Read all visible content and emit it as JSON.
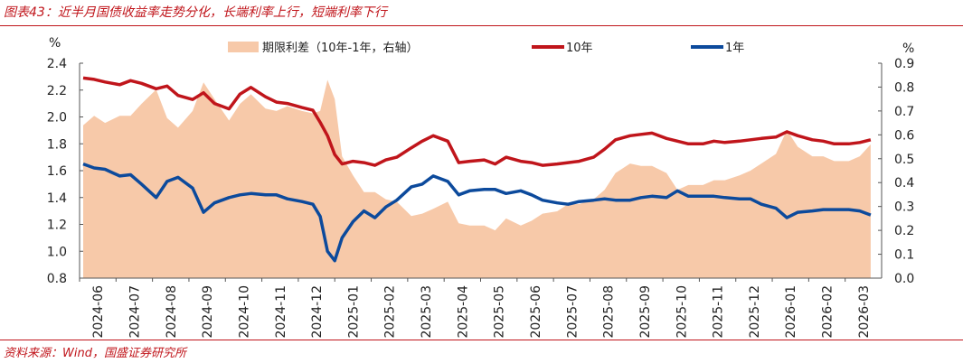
{
  "header": {
    "title": "图表43：近半月国债收益率走势分化，长端利率上行，短端利率下行"
  },
  "footer": {
    "source": "资料来源：Wind，国盛证券研究所"
  },
  "colors": {
    "spread": "#f7c9a9",
    "y10": "#c0151b",
    "y1": "#0c4a9c",
    "accent": "#c0151b"
  },
  "chart_data": {
    "type": "line",
    "left_unit": "%",
    "right_unit": "%",
    "left_axis": {
      "min": 0.8,
      "max": 2.4,
      "ticks": [
        "2.4",
        "2.2",
        "2.0",
        "1.8",
        "1.6",
        "1.4",
        "1.2",
        "1.0",
        "0.8"
      ]
    },
    "right_axis": {
      "min": 0.0,
      "max": 0.9,
      "ticks": [
        "0.9",
        "0.8",
        "0.7",
        "0.6",
        "0.5",
        "0.4",
        "0.3",
        "0.2",
        "0.1",
        "0.0"
      ]
    },
    "x_ticks": [
      "2024-06",
      "2024-07",
      "2024-08",
      "2024-09",
      "2024-10",
      "2024-11",
      "2024-12",
      "2025-01",
      "2025-02",
      "2025-03",
      "2025-04",
      "2025-05",
      "2025-06",
      "2025-07",
      "2025-08",
      "2025-09",
      "2025-10",
      "2025-11",
      "2025-12",
      "2026-01",
      "2026-02",
      "2026-03"
    ],
    "legend": [
      {
        "name": "期限利差（10年-1年，右轴）",
        "key": "spread"
      },
      {
        "name": "10年",
        "key": "y10"
      },
      {
        "name": "1年",
        "key": "y1"
      }
    ],
    "series": [
      {
        "name": "10年",
        "axis": "left",
        "x": [
          0,
          0.3,
          0.6,
          1,
          1.3,
          1.6,
          2,
          2.3,
          2.6,
          3,
          3.3,
          3.6,
          4,
          4.3,
          4.6,
          5,
          5.3,
          5.6,
          6,
          6.3,
          6.5,
          6.7,
          6.9,
          7.1,
          7.4,
          7.7,
          8,
          8.3,
          8.6,
          9,
          9.3,
          9.6,
          10,
          10.3,
          10.6,
          11,
          11.3,
          11.6,
          12,
          12.3,
          12.6,
          13,
          13.3,
          13.6,
          14,
          14.3,
          14.6,
          15,
          15.3,
          15.6,
          16,
          16.3,
          16.6,
          17,
          17.3,
          17.6,
          18,
          18.3,
          18.6,
          19,
          19.3,
          19.6,
          20,
          20.3,
          20.6,
          21,
          21.3,
          21.6
        ],
        "values": [
          2.29,
          2.28,
          2.26,
          2.24,
          2.27,
          2.25,
          2.21,
          2.23,
          2.16,
          2.13,
          2.18,
          2.1,
          2.06,
          2.17,
          2.22,
          2.15,
          2.11,
          2.1,
          2.07,
          2.05,
          1.96,
          1.86,
          1.72,
          1.65,
          1.67,
          1.66,
          1.64,
          1.68,
          1.7,
          1.77,
          1.82,
          1.86,
          1.82,
          1.66,
          1.67,
          1.68,
          1.65,
          1.7,
          1.67,
          1.66,
          1.64,
          1.65,
          1.66,
          1.67,
          1.7,
          1.76,
          1.83,
          1.86,
          1.87,
          1.88,
          1.84,
          1.82,
          1.8,
          1.8,
          1.82,
          1.81,
          1.82,
          1.83,
          1.84,
          1.85,
          1.89,
          1.86,
          1.83,
          1.82,
          1.8,
          1.8,
          1.81,
          1.83
        ]
      },
      {
        "name": "1年",
        "axis": "left",
        "x": [
          0,
          0.3,
          0.6,
          1,
          1.3,
          1.6,
          2,
          2.3,
          2.6,
          3,
          3.3,
          3.6,
          4,
          4.3,
          4.6,
          5,
          5.3,
          5.6,
          6,
          6.3,
          6.5,
          6.7,
          6.9,
          7.1,
          7.4,
          7.7,
          8,
          8.3,
          8.6,
          9,
          9.3,
          9.6,
          10,
          10.3,
          10.6,
          11,
          11.3,
          11.6,
          12,
          12.3,
          12.6,
          13,
          13.3,
          13.6,
          14,
          14.3,
          14.6,
          15,
          15.3,
          15.6,
          16,
          16.3,
          16.6,
          17,
          17.3,
          17.6,
          18,
          18.3,
          18.6,
          19,
          19.3,
          19.6,
          20,
          20.3,
          20.6,
          21,
          21.3,
          21.6
        ],
        "values": [
          1.65,
          1.62,
          1.61,
          1.56,
          1.57,
          1.5,
          1.4,
          1.52,
          1.55,
          1.47,
          1.29,
          1.36,
          1.4,
          1.42,
          1.43,
          1.42,
          1.42,
          1.39,
          1.37,
          1.35,
          1.26,
          1.0,
          0.93,
          1.1,
          1.22,
          1.3,
          1.25,
          1.33,
          1.38,
          1.48,
          1.5,
          1.56,
          1.52,
          1.42,
          1.45,
          1.46,
          1.46,
          1.43,
          1.45,
          1.42,
          1.38,
          1.36,
          1.35,
          1.37,
          1.38,
          1.39,
          1.38,
          1.38,
          1.4,
          1.41,
          1.4,
          1.45,
          1.41,
          1.41,
          1.41,
          1.4,
          1.39,
          1.39,
          1.35,
          1.32,
          1.25,
          1.29,
          1.3,
          1.31,
          1.31,
          1.31,
          1.3,
          1.27
        ]
      },
      {
        "name": "期限利差（10年-1年，右轴）",
        "axis": "right",
        "x": [
          0,
          0.3,
          0.6,
          1,
          1.3,
          1.6,
          2,
          2.3,
          2.6,
          3,
          3.3,
          3.6,
          4,
          4.3,
          4.6,
          5,
          5.3,
          5.6,
          6,
          6.3,
          6.5,
          6.7,
          6.9,
          7.1,
          7.4,
          7.7,
          8,
          8.3,
          8.6,
          9,
          9.3,
          9.6,
          10,
          10.3,
          10.6,
          11,
          11.3,
          11.6,
          12,
          12.3,
          12.6,
          13,
          13.3,
          13.6,
          14,
          14.3,
          14.6,
          15,
          15.3,
          15.6,
          16,
          16.3,
          16.6,
          17,
          17.3,
          17.6,
          18,
          18.3,
          18.6,
          19,
          19.3,
          19.6,
          20,
          20.3,
          20.6,
          21,
          21.3,
          21.6
        ],
        "values": [
          0.64,
          0.68,
          0.65,
          0.68,
          0.68,
          0.73,
          0.79,
          0.67,
          0.63,
          0.7,
          0.82,
          0.75,
          0.66,
          0.73,
          0.77,
          0.71,
          0.7,
          0.72,
          0.7,
          0.69,
          0.7,
          0.83,
          0.75,
          0.51,
          0.43,
          0.36,
          0.36,
          0.33,
          0.32,
          0.26,
          0.27,
          0.29,
          0.32,
          0.23,
          0.22,
          0.22,
          0.2,
          0.25,
          0.22,
          0.24,
          0.27,
          0.28,
          0.31,
          0.31,
          0.33,
          0.37,
          0.44,
          0.48,
          0.47,
          0.47,
          0.44,
          0.37,
          0.39,
          0.39,
          0.41,
          0.41,
          0.43,
          0.45,
          0.48,
          0.52,
          0.62,
          0.55,
          0.51,
          0.51,
          0.49,
          0.49,
          0.51,
          0.56
        ]
      }
    ]
  }
}
